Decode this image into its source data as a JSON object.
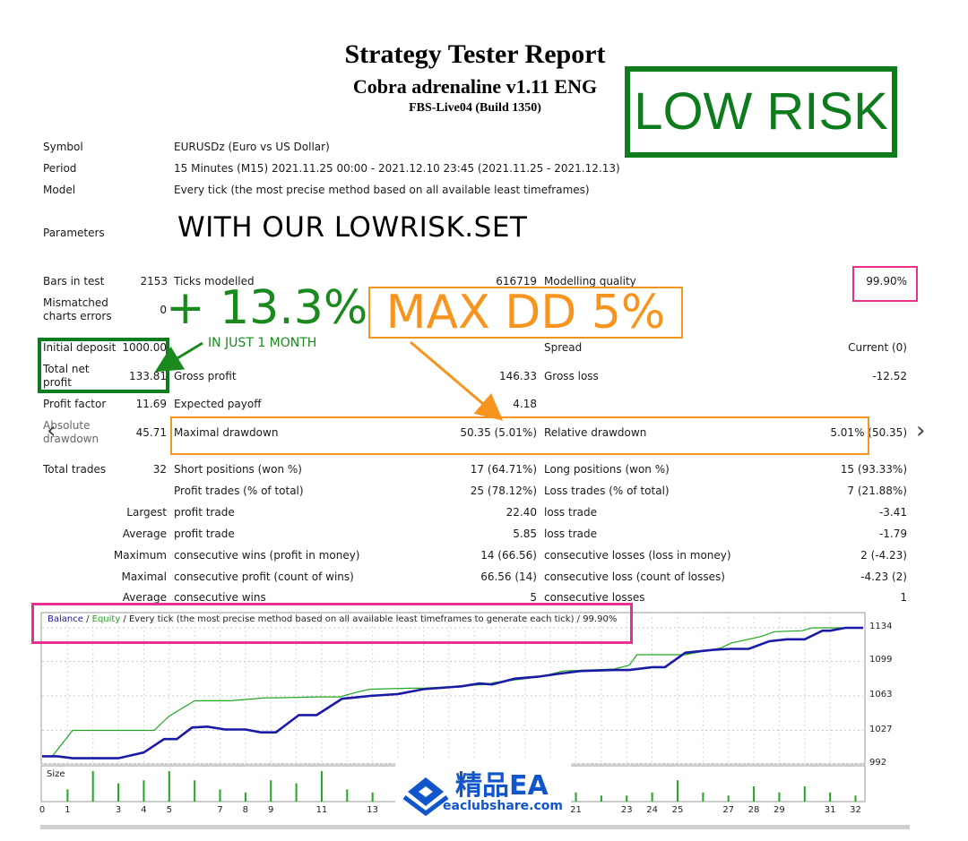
{
  "report": {
    "title": "Strategy Tester Report",
    "expert": "Cobra adrenaline v1.11 ENG",
    "server": "FBS-Live04 (Build 1350)"
  },
  "annotations": {
    "low_risk": "LOW RISK",
    "set_note": "WITH OUR LOWRISK.SET",
    "gain": "+ 13.3%",
    "gain_sub": "IN JUST 1 MONTH",
    "max_dd": "MAX DD 5%",
    "accent_green": "#0e7b1c",
    "accent_orange": "#f7941d",
    "accent_pink": "#e9308f"
  },
  "settings": {
    "symbol_label": "Symbol",
    "symbol_value": "EURUSDz (Euro vs US Dollar)",
    "period_label": "Period",
    "period_value": "15 Minutes (M15) 2021.11.25 00:00 - 2021.12.10 23:45 (2021.11.25 - 2021.12.13)",
    "model_label": "Model",
    "model_value": "Every tick (the most precise method based on all available least timeframes)",
    "parameters_label": "Parameters"
  },
  "stats": {
    "bars_label": "Bars in test",
    "bars_value": "2153",
    "ticks_label": "Ticks modelled",
    "ticks_value": "616719",
    "quality_label": "Modelling quality",
    "quality_value": "99.90%",
    "mismatch_label_1": "Mismatched",
    "mismatch_label_2": "charts errors",
    "mismatch_value": "0",
    "deposit_label": "Initial deposit",
    "deposit_value": "1000.00",
    "spread_label": "Spread",
    "spread_value": "Current (0)",
    "net_label_1": "Total net",
    "net_label_2": "profit",
    "net_value": "133.81",
    "gross_profit_label": "Gross profit",
    "gross_profit_value": "146.33",
    "gross_loss_label": "Gross loss",
    "gross_loss_value": "-12.52",
    "pf_label": "Profit factor",
    "pf_value": "11.69",
    "ep_label": "Expected payoff",
    "ep_value": "4.18",
    "abs_dd_label_1": "Absolute",
    "abs_dd_label_2": "drawdown",
    "abs_dd_value": "45.71",
    "max_dd_label": "Maximal drawdown",
    "max_dd_value": "50.35 (5.01%)",
    "rel_dd_label": "Relative drawdown",
    "rel_dd_value": "5.01% (50.35)",
    "trades_label": "Total trades",
    "trades_value": "32",
    "short_label": "Short positions (won %)",
    "short_value": "17 (64.71%)",
    "long_label": "Long positions (won %)",
    "long_value": "15 (93.33%)",
    "pt_label": "Profit trades (% of total)",
    "pt_value": "25 (78.12%)",
    "lt_label": "Loss trades (% of total)",
    "lt_value": "7 (21.88%)",
    "largest_label": "Largest",
    "largest_pt_label": "profit trade",
    "largest_pt_value": "22.40",
    "largest_lt_label": "loss trade",
    "largest_lt_value": "-3.41",
    "average_label": "Average",
    "avg_pt_label": "profit trade",
    "avg_pt_value": "5.85",
    "avg_lt_label": "loss trade",
    "avg_lt_value": "-1.79",
    "maximum_label": "Maximum",
    "max_cw_label": "consecutive wins (profit in money)",
    "max_cw_value": "14 (66.56)",
    "max_cl_label": "consecutive losses (loss in money)",
    "max_cl_value": "2 (-4.23)",
    "maximal_label": "Maximal",
    "maximal_cp_label": "consecutive profit (count of wins)",
    "maximal_cp_value": "66.56 (14)",
    "maximal_cl_label": "consecutive loss (count of losses)",
    "maximal_cl_value": "-4.23 (2)",
    "average2_label": "Average",
    "avg_cw_label": "consecutive wins",
    "avg_cw_value": "5",
    "avg_cl_label": "consecutive losses",
    "avg_cl_value": "1"
  },
  "watermark": {
    "text": "精品EA",
    "url": "eaclubshare.com"
  },
  "chart_data": {
    "type": "line",
    "legend": {
      "balance": "Balance",
      "sep1": " / ",
      "equity": "Equity",
      "rest": " / Every tick (the most precise method based on all available least timeframes to generate each tick) / 99.90%",
      "balance_color": "#1a1aa6",
      "equity_color": "#22a722"
    },
    "yticks": [
      "1134",
      "1099",
      "1063",
      "1027",
      "992"
    ],
    "ylim": [
      992,
      1134
    ],
    "xticks": [
      "0",
      "1",
      "3",
      "4",
      "5",
      "7",
      "8",
      "9",
      "11",
      "13",
      "21",
      "23",
      "24",
      "25",
      "27",
      "28",
      "29",
      "31",
      "32"
    ],
    "xtick_values": [
      0,
      1,
      3,
      4,
      5,
      7,
      8,
      9,
      11,
      13,
      21,
      23,
      24,
      25,
      27,
      28,
      29,
      31,
      32
    ],
    "xlim": [
      0,
      32.3
    ],
    "series": [
      {
        "name": "Balance",
        "color": "#1a1aa6",
        "x": [
          0,
          0.6,
          1.2,
          3,
          4,
          4.8,
          5.3,
          5.9,
          6.5,
          7.2,
          8,
          8.6,
          9.2,
          10.1,
          10.8,
          11.8,
          12.2,
          12.9,
          14,
          15,
          16.5,
          17.2,
          17.7,
          18.6,
          19.5,
          20.3,
          21.2,
          22.5,
          23.1,
          24,
          24.5,
          25.3,
          26.4,
          27.1,
          27.8,
          28.6,
          29.3,
          30,
          30.7,
          31,
          31.6,
          32.3
        ],
        "y": [
          1000,
          1000,
          998,
          998,
          1004,
          1018,
          1018,
          1030,
          1031,
          1028,
          1028,
          1025,
          1025,
          1043,
          1043,
          1060,
          1061,
          1063,
          1065,
          1070,
          1073,
          1076,
          1075,
          1081,
          1083,
          1086,
          1089,
          1090,
          1090,
          1093,
          1093,
          1108,
          1111,
          1112,
          1112,
          1120,
          1122,
          1122,
          1131,
          1131,
          1134,
          1134
        ]
      },
      {
        "name": "Equity",
        "color": "#22a722",
        "x": [
          0,
          0.4,
          1.2,
          2.3,
          3.5,
          4.4,
          5,
          6,
          6.4,
          7.4,
          8.8,
          9.3,
          10.8,
          11.7,
          12.4,
          12.9,
          14.5,
          15,
          17.5,
          17.8,
          19.6,
          20.5,
          22.5,
          23.1,
          23.4,
          25.3,
          26.7,
          27.1,
          28.3,
          28.8,
          29.9,
          30.3,
          32.3
        ],
        "y": [
          1000,
          1000,
          1027,
          1027,
          1027,
          1027,
          1042,
          1058,
          1058,
          1058,
          1061,
          1061,
          1062,
          1062,
          1067,
          1070,
          1071,
          1071,
          1075,
          1077,
          1083,
          1089,
          1091,
          1095,
          1106,
          1106,
          1113,
          1118,
          1125,
          1130,
          1131,
          1134,
          1134
        ]
      }
    ],
    "size_panel": {
      "label": "Size",
      "x": [
        1,
        2,
        3,
        4,
        5,
        6,
        7,
        8,
        9,
        10,
        11,
        12,
        13,
        14,
        21,
        22,
        23,
        24,
        25,
        26,
        27,
        28,
        29,
        30,
        31,
        32
      ],
      "h": [
        0.4,
        1,
        0.6,
        0.7,
        1,
        0.7,
        0.4,
        0.3,
        0.7,
        0.6,
        1,
        0.4,
        0.3,
        0.5,
        0.3,
        0.2,
        0.2,
        0.3,
        0.7,
        0.3,
        0.2,
        0.5,
        0.3,
        0.5,
        0.3,
        0.2
      ]
    }
  }
}
